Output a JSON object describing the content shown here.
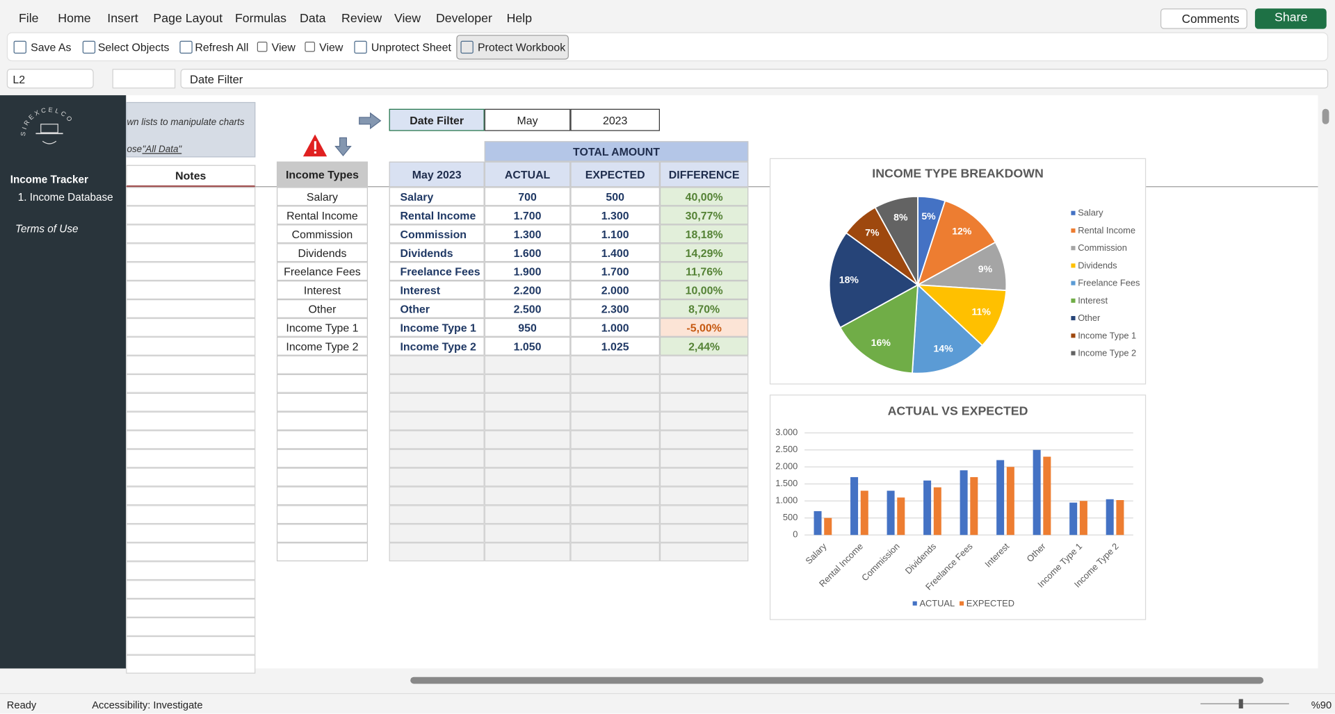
{
  "menu": {
    "tabs": [
      "File",
      "Home",
      "Insert",
      "Page Layout",
      "Formulas",
      "Data",
      "Review",
      "View",
      "Developer",
      "Help"
    ],
    "comments": "Comments",
    "share": "Share"
  },
  "toolbar": {
    "buttons": [
      "Save As",
      "Select Objects",
      "Refresh All",
      "View",
      "View",
      "Unprotect Sheet",
      "Protect Workbook"
    ]
  },
  "formula_bar": {
    "cell": "L2",
    "formula": "Date Filter"
  },
  "sidebar": {
    "logo": "SIREXCELCO",
    "title": "Income Tracker",
    "links": [
      "1. Income Database",
      "Terms of Use"
    ]
  },
  "note": {
    "line1": "wn lists to manipulate charts",
    "line2": "ose",
    "link": "\"All Data\""
  },
  "notes_header": "Notes",
  "income_types": {
    "header": "Income Types",
    "items": [
      "Salary",
      "Rental Income",
      "Commission",
      "Dividends",
      "Freelance Fees",
      "Interest",
      "Other",
      "Income Type 1",
      "Income Type 2"
    ]
  },
  "date_filter": {
    "label": "Date Filter",
    "month": "May",
    "year": "2023"
  },
  "table": {
    "group_header": "TOTAL AMOUNT",
    "headers": [
      "May 2023",
      "ACTUAL",
      "EXPECTED",
      "DIFFERENCE"
    ],
    "rows": [
      [
        "Salary",
        "700",
        "500",
        "40,00%"
      ],
      [
        "Rental Income",
        "1.700",
        "1.300",
        "30,77%"
      ],
      [
        "Commission",
        "1.300",
        "1.100",
        "18,18%"
      ],
      [
        "Dividends",
        "1.600",
        "1.400",
        "14,29%"
      ],
      [
        "Freelance Fees",
        "1.900",
        "1.700",
        "11,76%"
      ],
      [
        "Interest",
        "2.200",
        "2.000",
        "10,00%"
      ],
      [
        "Other",
        "2.500",
        "2.300",
        "8,70%"
      ],
      [
        "Income Type 1",
        "950",
        "1.000",
        "-5,00%"
      ],
      [
        "Income Type 2",
        "1.050",
        "1.025",
        "2,44%"
      ]
    ]
  },
  "pie_chart": {
    "type": "pie",
    "title": "INCOME TYPE BREAKDOWN",
    "categories": [
      "Salary",
      "Rental Income",
      "Commission",
      "Dividends",
      "Freelance Fees",
      "Interest",
      "Other",
      "Income Type 1",
      "Income Type 2"
    ],
    "values": [
      5,
      12,
      9,
      11,
      14,
      16,
      18,
      7,
      8
    ],
    "value_labels": [
      "5%",
      "12%",
      "9%",
      "11%",
      "14%",
      "16%",
      "18%",
      "7%",
      "8%"
    ],
    "colors": [
      "#4472c4",
      "#ed7d31",
      "#a5a5a5",
      "#ffc000",
      "#5b9bd5",
      "#70ad47",
      "#264478",
      "#9e480e",
      "#636363"
    ],
    "legend": "right"
  },
  "bar_chart": {
    "type": "bar",
    "title": "ACTUAL VS EXPECTED",
    "categories": [
      "Salary",
      "Rental Income",
      "Commission",
      "Dividends",
      "Freelance Fees",
      "Interest",
      "Other",
      "Income Type 1",
      "Income Type 2"
    ],
    "series": [
      {
        "name": "ACTUAL",
        "color": "#4472c4",
        "values": [
          700,
          1700,
          1300,
          1600,
          1900,
          2200,
          2500,
          950,
          1050
        ]
      },
      {
        "name": "EXPECTED",
        "color": "#ed7d31",
        "values": [
          500,
          1300,
          1100,
          1400,
          1700,
          2000,
          2300,
          1000,
          1025
        ]
      }
    ],
    "ylim": [
      0,
      3000
    ],
    "yticks": [
      0,
      500,
      {
        "value": 1000,
        "label": "1.000"
      },
      {
        "value": 1500,
        "label": "1.500"
      },
      {
        "value": 2000,
        "label": "2.000"
      },
      {
        "value": 2500,
        "label": "2.500"
      },
      {
        "value": 3000,
        "label": "3.000"
      }
    ],
    "grid": true,
    "legend": "bottom"
  },
  "status_bar": {
    "ready": "Ready",
    "accessibility": "Accessibility: Investigate",
    "zoom": "%90"
  }
}
